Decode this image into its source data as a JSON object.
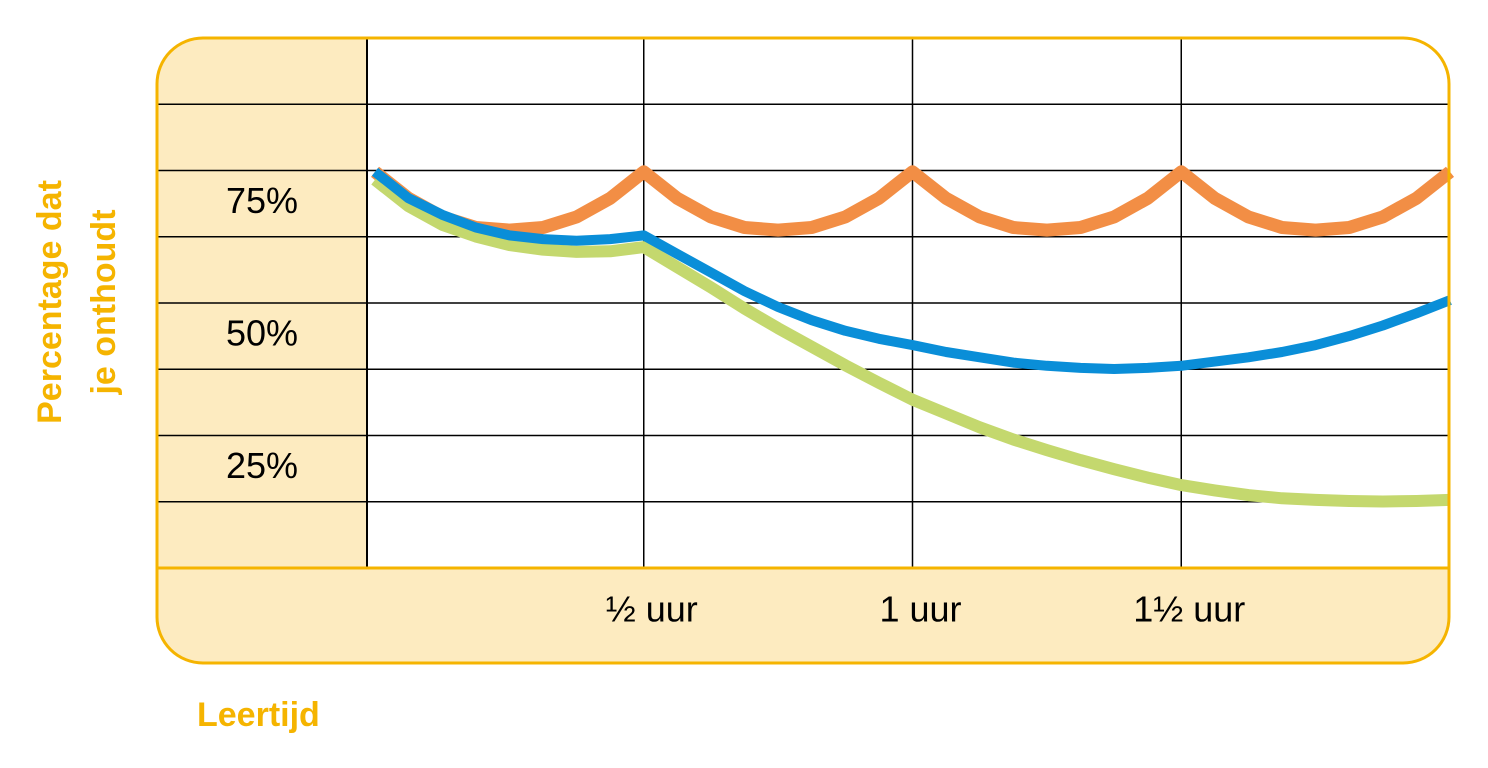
{
  "chart_data": {
    "type": "line",
    "ylabel": [
      "Percentage dat",
      "je onthoudt"
    ],
    "xlabel": "Leertijd",
    "x": [
      0,
      0.0625,
      0.125,
      0.1875,
      0.25,
      0.3125,
      0.375,
      0.4375,
      0.5,
      0.5625,
      0.625,
      0.6875,
      0.75,
      0.8125,
      0.875,
      0.9375,
      1,
      1.0625,
      1.125,
      1.1875,
      1.25,
      1.3125,
      1.375,
      1.4375,
      1.5,
      1.5625,
      1.625,
      1.6875,
      1.75,
      1.8125,
      1.875,
      1.9375,
      2
    ],
    "series": [
      {
        "color": "#f28e45",
        "values": [
          81,
          76,
          72.5,
          70.5,
          70,
          70.5,
          72.5,
          76,
          81,
          76,
          72.5,
          70.5,
          70,
          70.5,
          72.5,
          76,
          81,
          76,
          72.5,
          70.5,
          70,
          70.5,
          72.5,
          76,
          81,
          76,
          72.5,
          70.5,
          70,
          70.5,
          72.5,
          76,
          81
        ]
      },
      {
        "color": "#c4d86e",
        "values": [
          79.5,
          74.5,
          71,
          68.8,
          67.2,
          66.3,
          65.9,
          66,
          66.8,
          63,
          59.2,
          55.2,
          51.5,
          48,
          44.5,
          41.2,
          38,
          35.4,
          32.8,
          30.5,
          28.5,
          26.6,
          24.9,
          23.3,
          21.9,
          20.9,
          20,
          19.4,
          19.1,
          18.9,
          18.8,
          18.9,
          19.1
        ]
      },
      {
        "color": "#0a8ed8",
        "values": [
          81,
          76,
          72.9,
          70.5,
          69,
          68.3,
          68,
          68.3,
          69,
          65.5,
          62,
          58.5,
          55.5,
          53,
          51,
          49.5,
          48.3,
          47,
          46,
          45,
          44.4,
          44,
          43.8,
          44,
          44.4,
          45.2,
          46,
          47,
          48.3,
          50,
          52,
          54.3,
          56.8
        ]
      }
    ],
    "xlim": [
      0,
      2
    ],
    "xticks": [
      {
        "value": 0.5,
        "label": "½ uur"
      },
      {
        "value": 1,
        "label": "1 uur"
      },
      {
        "value": 1.5,
        "label": "1½ uur"
      }
    ],
    "ylim": [
      6.25,
      106.25
    ],
    "yticks": [
      {
        "value": 25,
        "label": "25%"
      },
      {
        "value": 50,
        "label": "50%"
      },
      {
        "value": 75,
        "label": "75%"
      }
    ],
    "ygrid": [
      18.75,
      31.25,
      43.75,
      56.25,
      68.75,
      81.25,
      93.75
    ]
  }
}
